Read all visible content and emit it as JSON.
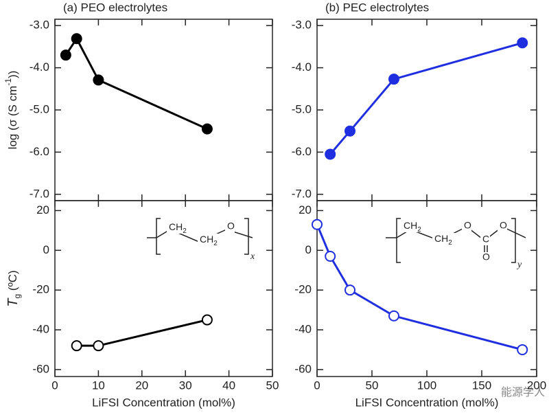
{
  "chart_data": [
    {
      "type": "line",
      "title": "(a) PEO electrolytes",
      "y_label": [
        "log (σ (S cm",
        "-1",
        "))"
      ],
      "x": [
        2.5,
        5,
        10,
        35
      ],
      "series": [
        {
          "color": "#000000",
          "marker": "filled",
          "values": [
            -3.7,
            -3.31,
            -4.29,
            -5.45
          ]
        }
      ],
      "xlim": [
        0,
        50
      ],
      "xticks": [
        0,
        10,
        20,
        30,
        40,
        50
      ],
      "ylim": [
        -7.15,
        -2.85
      ],
      "yticks": [
        {
          "value": -3,
          "label": "-3.0"
        },
        {
          "value": -4,
          "label": "-4.0"
        },
        {
          "value": -5,
          "label": "-5.0"
        },
        {
          "value": -6,
          "label": "-6.0"
        },
        {
          "value": -7,
          "label": "-7.0"
        }
      ]
    },
    {
      "type": "line",
      "title": "(b) PEC electrolytes",
      "x": [
        12,
        30,
        70,
        187
      ],
      "series": [
        {
          "color": "#1f2fe0",
          "marker": "filled",
          "values": [
            -6.05,
            -5.5,
            -4.27,
            -3.41
          ]
        }
      ],
      "xlim": [
        0,
        200
      ],
      "xticks": [
        0,
        50,
        100,
        150,
        200
      ],
      "ylim": [
        -7.15,
        -2.85
      ],
      "yticks": [
        {
          "value": -3,
          "label": "-3.0"
        },
        {
          "value": -4,
          "label": "-4.0"
        },
        {
          "value": -5,
          "label": "-5.0"
        },
        {
          "value": -6,
          "label": "-6.0"
        },
        {
          "value": -7,
          "label": "-7.0"
        }
      ]
    },
    {
      "type": "line",
      "y_label": [
        "T",
        "g",
        " (ºC)"
      ],
      "x_label": "LiFSI Concentration (mol%)",
      "x": [
        5,
        10,
        35
      ],
      "series": [
        {
          "color": "#000000",
          "marker": "open",
          "values": [
            -48,
            -48,
            -35
          ]
        }
      ],
      "xlim": [
        0,
        50
      ],
      "xticks": [
        0,
        10,
        20,
        30,
        40,
        50
      ],
      "ylim": [
        -63.5,
        25
      ],
      "yticks": [
        20,
        0,
        -20,
        -40,
        -60
      ]
    },
    {
      "type": "line",
      "x_label": "LiFSI Concentration (mol%)",
      "x": [
        0,
        12,
        30,
        70,
        187
      ],
      "series": [
        {
          "color": "#1f2fe0",
          "marker": "open",
          "values": [
            13,
            -3,
            -20,
            -33,
            -50
          ]
        }
      ],
      "xlim": [
        0,
        200
      ],
      "xticks": [
        0,
        50,
        100,
        150,
        200
      ],
      "ylim": [
        -63.5,
        25
      ],
      "yticks": [
        20,
        0,
        -20,
        -40,
        -60
      ]
    }
  ],
  "structures": {
    "peo": [
      "CH",
      "2",
      "CH",
      "2",
      "O",
      "x"
    ],
    "pec": [
      "CH",
      "2",
      "CH",
      "2",
      "O",
      "C",
      "O",
      "O",
      "y"
    ]
  },
  "watermark": "能源学人"
}
